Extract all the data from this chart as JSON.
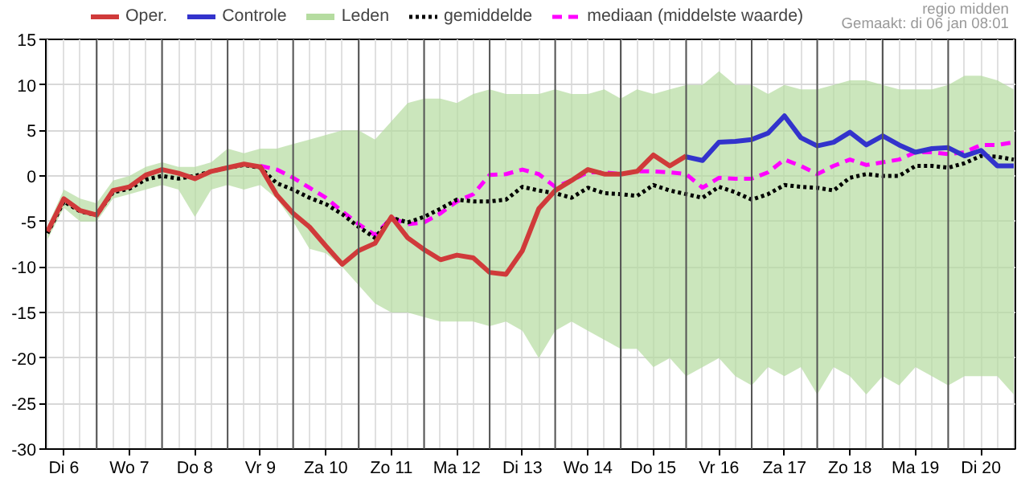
{
  "chart_data": {
    "type": "line",
    "annotations": [
      "regio midden",
      "Gemaakt: di 06 jan 08:01"
    ],
    "categories": [
      null,
      "Di 6",
      null,
      null,
      null,
      "Wo 7",
      null,
      null,
      null,
      "Do 8",
      null,
      null,
      null,
      "Vr 9",
      null,
      null,
      null,
      "Za 10",
      null,
      null,
      null,
      "Zo 11",
      null,
      null,
      null,
      "Ma 12",
      null,
      null,
      null,
      "Di 13",
      null,
      null,
      null,
      "Wo 14",
      null,
      null,
      null,
      "Do 15",
      null,
      null,
      null,
      "Vr 16",
      null,
      null,
      null,
      "Za 17",
      null,
      null,
      null,
      "Zo 18",
      null,
      null,
      null,
      "Ma 19",
      null,
      null,
      null,
      "Di 20",
      null,
      null
    ],
    "series": [
      {
        "name": "Oper.",
        "color": "#d03a3a",
        "line_style": "solid",
        "values": [
          -6.1,
          -2.5,
          -3.8,
          -4.3,
          -1.6,
          -1.2,
          0.1,
          0.7,
          0.3,
          -0.3,
          0.5,
          0.9,
          1.3,
          1.0,
          -2.1,
          -4.1,
          -5.6,
          -7.7,
          -9.7,
          -8.2,
          -7.4,
          -4.5,
          -6.8,
          -8.1,
          -9.2,
          -8.7,
          -9.0,
          -10.6,
          -10.8,
          -8.2,
          -3.6,
          -1.6,
          -0.5,
          0.7,
          0.2,
          0.2,
          0.5,
          2.3,
          1.1,
          2.2,
          null,
          null,
          null,
          null,
          null,
          null,
          null,
          null,
          null,
          null,
          null,
          null,
          null,
          null,
          null,
          null,
          null,
          null,
          null,
          null
        ]
      },
      {
        "name": "Controle",
        "color": "#3333cc",
        "line_style": "solid",
        "values": [
          null,
          null,
          null,
          null,
          null,
          null,
          null,
          null,
          null,
          null,
          null,
          null,
          null,
          null,
          null,
          null,
          null,
          null,
          null,
          null,
          null,
          null,
          null,
          null,
          null,
          null,
          null,
          null,
          null,
          null,
          null,
          null,
          null,
          null,
          null,
          null,
          null,
          null,
          null,
          2.1,
          1.7,
          3.7,
          3.8,
          4.0,
          4.7,
          6.6,
          4.2,
          3.3,
          3.7,
          4.8,
          3.4,
          4.4,
          3.4,
          2.6,
          3.0,
          3.1,
          2.2,
          2.8,
          1.1,
          1.1
        ]
      },
      {
        "name": "Leden",
        "color": "#b5dca0",
        "values": [
          null,
          null,
          null,
          null,
          null,
          null,
          null,
          null,
          null,
          null,
          null,
          null,
          null,
          null,
          null,
          null,
          null,
          null,
          null,
          null,
          null,
          null,
          null,
          null,
          null,
          null,
          null,
          null,
          null,
          null,
          null,
          null,
          null,
          null,
          null,
          null,
          null,
          null,
          null,
          null,
          null,
          null,
          null,
          null,
          null,
          null,
          null,
          null,
          null,
          null,
          null,
          null,
          null,
          null,
          null,
          null,
          null,
          null,
          null,
          null
        ],
        "lower": [
          -7,
          -3.5,
          -5,
          -5,
          -2.5,
          -2,
          -1.5,
          -1,
          -1.5,
          -4.5,
          -1.5,
          -1,
          -1.5,
          -1,
          -2.5,
          -5,
          -8,
          -8.5,
          -10,
          -12,
          -14,
          -15,
          -15,
          -15.5,
          -16,
          -16,
          -16,
          -16.5,
          -16,
          -17,
          -20,
          -17,
          -16,
          -17,
          -18,
          -19,
          -19,
          -21,
          -20,
          -22,
          -21,
          -20,
          -22,
          -23,
          -21,
          -22,
          -21,
          -24,
          -21,
          -22,
          -24,
          -22,
          -23,
          -21,
          -22,
          -23,
          -22,
          -22,
          -22,
          -24
        ],
        "upper": [
          -5.5,
          -1.5,
          -2.5,
          -3,
          -0.5,
          0,
          1,
          1.5,
          1,
          1,
          1.5,
          3,
          2.5,
          3,
          3,
          3.5,
          4,
          4.5,
          5,
          5,
          4,
          6,
          8,
          8.5,
          8.5,
          8,
          9,
          9.5,
          9,
          9,
          9,
          9.5,
          9,
          9,
          9.5,
          8.5,
          9.5,
          9,
          9.5,
          10,
          10,
          11.5,
          10,
          10,
          9,
          10,
          9.5,
          9.5,
          10,
          10.5,
          10.5,
          10,
          9.5,
          9.5,
          9.5,
          10,
          11,
          11,
          10.5,
          9.5
        ]
      },
      {
        "name": "gemiddelde",
        "color": "#000000",
        "line_style": "dotted",
        "values": [
          -6.3,
          -2.8,
          -3.9,
          -4.3,
          -1.8,
          -1.4,
          -0.4,
          0.0,
          -0.3,
          0.0,
          0.5,
          0.9,
          1.2,
          0.9,
          -0.8,
          -1.5,
          -2.4,
          -3.1,
          -4.2,
          -5.6,
          -6.8,
          -4.6,
          -5.1,
          -4.5,
          -3.6,
          -2.6,
          -2.8,
          -2.8,
          -2.6,
          -1.2,
          -1.6,
          -1.9,
          -2.4,
          -1.3,
          -1.9,
          -2.0,
          -2.2,
          -1.0,
          -1.6,
          -2.0,
          -2.4,
          -1.2,
          -1.8,
          -2.6,
          -2.0,
          -1.0,
          -1.2,
          -1.3,
          -1.6,
          -0.2,
          0.2,
          0.0,
          0.0,
          1.1,
          1.1,
          0.9,
          1.4,
          2.2,
          2.1,
          1.8
        ]
      },
      {
        "name": "mediaan (middelste waarde)",
        "color": "#ff00ff",
        "line_style": "dashed",
        "values": [
          null,
          null,
          null,
          null,
          null,
          null,
          null,
          null,
          null,
          null,
          null,
          null,
          null,
          1.1,
          0.7,
          -0.2,
          -1.3,
          -2.4,
          -3.9,
          -5.3,
          -6.5,
          -4.6,
          -5.3,
          -5.1,
          -4.1,
          -2.8,
          -2.0,
          0.1,
          0.2,
          0.7,
          0.2,
          -1.2,
          -0.5,
          0.4,
          0.4,
          0.2,
          0.5,
          0.5,
          0.4,
          0.2,
          -1.3,
          -0.2,
          -0.3,
          -0.3,
          0.4,
          1.8,
          1.1,
          0.2,
          1.1,
          1.8,
          1.2,
          1.5,
          1.8,
          2.6,
          2.6,
          2.4,
          2.6,
          3.4,
          3.4,
          3.7
        ]
      }
    ],
    "legend": "top",
    "grid": true,
    "ylim": [
      -30,
      15
    ],
    "yticks": [
      -30,
      -25,
      -20,
      -15,
      -10,
      -5,
      0,
      5,
      10,
      15
    ]
  }
}
